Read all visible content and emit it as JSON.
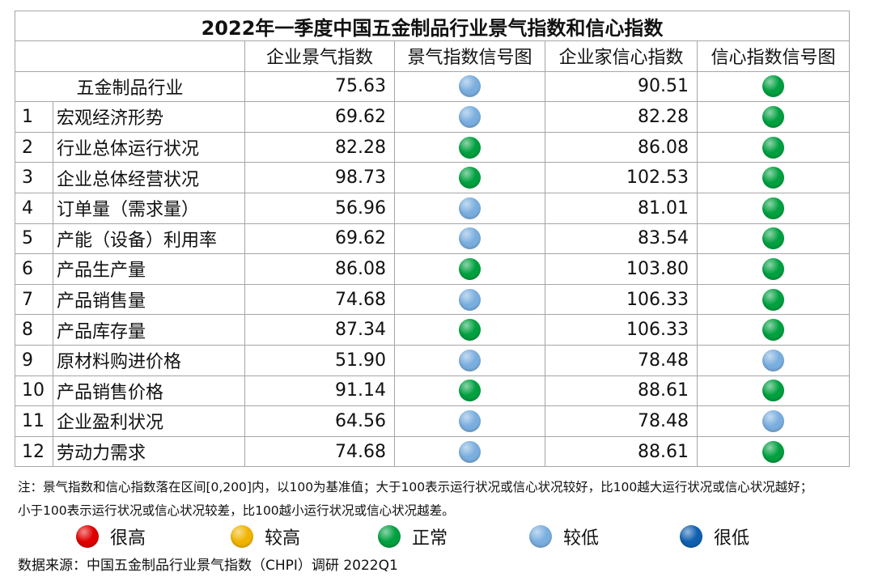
{
  "title": "2022年一季度中国五金制品行业景气指数和信心指数",
  "headers": [
    "企业景气指数",
    "景气指数信号图",
    "企业家信心指数",
    "信心指数信号图"
  ],
  "colors": {
    "very_high": "#e00000",
    "high": "#f0b400",
    "normal": "#00a040",
    "low": "#7aaede",
    "very_low": "#1060b0"
  },
  "total": {
    "name": "五金制品行业",
    "climate": "75.63",
    "climate_signal": "low",
    "confidence": "90.51",
    "confidence_signal": "normal"
  },
  "rows": [
    {
      "idx": "1",
      "name": "宏观经济形势",
      "climate": "69.62",
      "climate_signal": "low",
      "confidence": "82.28",
      "confidence_signal": "normal"
    },
    {
      "idx": "2",
      "name": "行业总体运行状况",
      "climate": "82.28",
      "climate_signal": "normal",
      "confidence": "86.08",
      "confidence_signal": "normal"
    },
    {
      "idx": "3",
      "name": "企业总体经营状况",
      "climate": "98.73",
      "climate_signal": "normal",
      "confidence": "102.53",
      "confidence_signal": "normal"
    },
    {
      "idx": "4",
      "name": "订单量（需求量）",
      "climate": "56.96",
      "climate_signal": "low",
      "confidence": "81.01",
      "confidence_signal": "normal"
    },
    {
      "idx": "5",
      "name": "产能（设备）利用率",
      "climate": "69.62",
      "climate_signal": "low",
      "confidence": "83.54",
      "confidence_signal": "normal"
    },
    {
      "idx": "6",
      "name": "产品生产量",
      "climate": "86.08",
      "climate_signal": "normal",
      "confidence": "103.80",
      "confidence_signal": "normal"
    },
    {
      "idx": "7",
      "name": "产品销售量",
      "climate": "74.68",
      "climate_signal": "low",
      "confidence": "106.33",
      "confidence_signal": "normal"
    },
    {
      "idx": "8",
      "name": "产品库存量",
      "climate": "87.34",
      "climate_signal": "normal",
      "confidence": "106.33",
      "confidence_signal": "normal"
    },
    {
      "idx": "9",
      "name": "原材料购进价格",
      "climate": "51.90",
      "climate_signal": "low",
      "confidence": "78.48",
      "confidence_signal": "low"
    },
    {
      "idx": "10",
      "name": "产品销售价格",
      "climate": "91.14",
      "climate_signal": "normal",
      "confidence": "88.61",
      "confidence_signal": "normal"
    },
    {
      "idx": "11",
      "name": "企业盈利状况",
      "climate": "64.56",
      "climate_signal": "low",
      "confidence": "78.48",
      "confidence_signal": "low"
    },
    {
      "idx": "12",
      "name": "劳动力需求",
      "climate": "74.68",
      "climate_signal": "low",
      "confidence": "88.61",
      "confidence_signal": "normal"
    }
  ],
  "notes": [
    "注：景气指数和信心指数落在区间[0,200]内，以100为基准值；大于100表示运行状况或信心状况较好，比100越大运行状况或信心状况越好；",
    "小于100表示运行状况或信心状况较差，比100越小运行状况或信心状况越差。"
  ],
  "legend": [
    {
      "signal": "very_high",
      "label": "很高"
    },
    {
      "signal": "high",
      "label": "较高"
    },
    {
      "signal": "normal",
      "label": "正常"
    },
    {
      "signal": "low",
      "label": "较低"
    },
    {
      "signal": "very_low",
      "label": "很低"
    }
  ],
  "source": "数据来源：中国五金制品行业景气指数（CHPI）调研 2022Q1"
}
